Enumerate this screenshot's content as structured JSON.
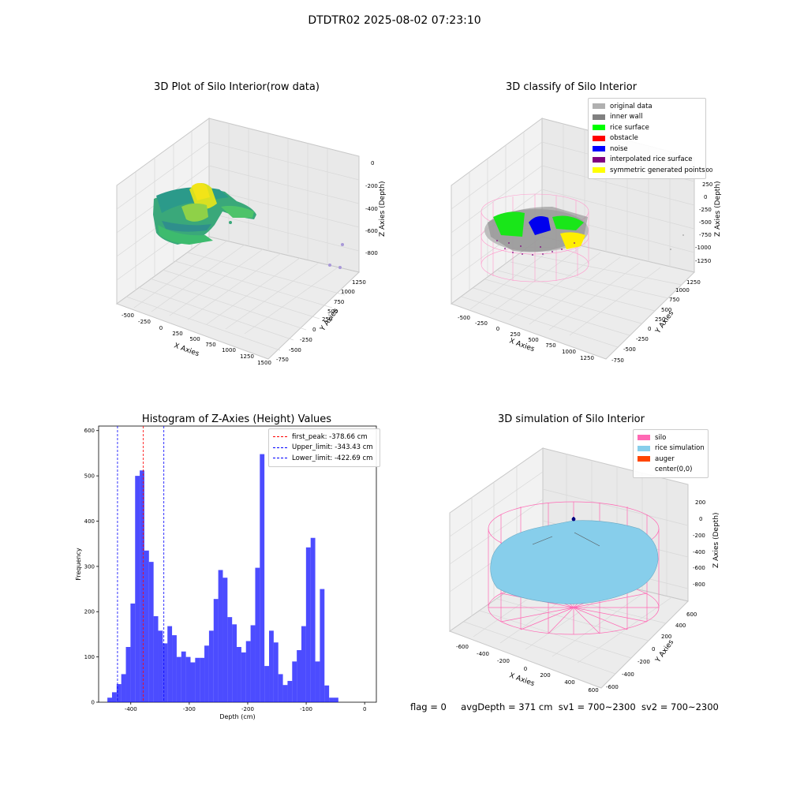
{
  "suptitle": "DTDTR02 2025-08-02 07:23:10",
  "panels": {
    "raw": {
      "title": "3D Plot of Silo Interior(row data)",
      "xlabel": "X Axies",
      "ylabel": "Y Axies",
      "zlabel": "Z Axies (Depth)",
      "xticks": [
        "-500",
        "-250",
        "0",
        "250",
        "500",
        "750",
        "1000",
        "1250",
        "1500"
      ],
      "yticks": [
        "-750",
        "-500",
        "-250",
        "0",
        "250",
        "500",
        "750",
        "1000",
        "1250"
      ],
      "zticks": [
        "0",
        "-200",
        "-400",
        "-600",
        "-800"
      ]
    },
    "classify": {
      "title": "3D classify of Silo Interior",
      "xlabel": "X Axies",
      "ylabel": "Y Axies",
      "zlabel": "Z Axies (Depth)",
      "xticks": [
        "-500",
        "-250",
        "0",
        "250",
        "500",
        "750",
        "1000",
        "1250"
      ],
      "yticks": [
        "-750",
        "-500",
        "-250",
        "0",
        "250",
        "500",
        "750",
        "1000",
        "1250"
      ],
      "zticks": [
        "500",
        "250",
        "0",
        "-250",
        "-500",
        "-750",
        "-1000",
        "-1250"
      ],
      "legend": [
        {
          "label": "original data",
          "color": "#b0b0b0"
        },
        {
          "label": "inner wall",
          "color": "#808080"
        },
        {
          "label": "rice surface",
          "color": "#00ff00"
        },
        {
          "label": "obstacle",
          "color": "#ff0000"
        },
        {
          "label": "noise",
          "color": "#0000ff"
        },
        {
          "label": "interpolated rice surface",
          "color": "#800080"
        },
        {
          "label": "symmetric generated points",
          "color": "#ffff00"
        }
      ]
    },
    "simulation": {
      "title": "3D simulation of Silo Interior",
      "xlabel": "X Axies",
      "ylabel": "Y Axies",
      "zlabel": "Z Axies (Depth)",
      "xticks": [
        "-600",
        "-400",
        "-200",
        "0",
        "200",
        "400",
        "600"
      ],
      "yticks": [
        "-600",
        "-400",
        "-200",
        "0",
        "200",
        "400",
        "600"
      ],
      "zticks": [
        "200",
        "0",
        "-200",
        "-400",
        "-600",
        "-800"
      ],
      "legend": [
        {
          "label": "silo",
          "color": "#ff69b4"
        },
        {
          "label": "rice simulation",
          "color": "#87ceeb"
        },
        {
          "label": "auger",
          "color": "#ff4500"
        },
        {
          "label": "center(0,0)",
          "color": ""
        }
      ]
    }
  },
  "chart_data": {
    "type": "bar",
    "title": "Histogram of Z-Axies (Height) Values",
    "xlabel": "Depth (cm)",
    "ylabel": "Frequency",
    "xlim": [
      -455,
      20
    ],
    "ylim": [
      0,
      610
    ],
    "xticks": [
      -400,
      -300,
      -200,
      -100,
      0
    ],
    "yticks": [
      0,
      100,
      200,
      300,
      400,
      500,
      600
    ],
    "bin_start": -440,
    "bin_width": 7.9,
    "values": [
      10,
      22,
      40,
      62,
      122,
      218,
      500,
      512,
      335,
      310,
      190,
      158,
      130,
      168,
      148,
      100,
      112,
      100,
      88,
      98,
      98,
      125,
      158,
      228,
      292,
      275,
      188,
      172,
      122,
      110,
      135,
      170,
      297,
      548,
      80,
      158,
      132,
      62,
      38,
      47,
      90,
      115,
      168,
      342,
      363,
      90,
      250,
      37,
      10,
      10
    ],
    "bar_color": "#0000ff",
    "bar_opacity": 0.7,
    "vlines": [
      {
        "label": "first_peak: -378.66 cm",
        "x": -378.66,
        "color": "#ff0000"
      },
      {
        "label": "Upper_limit: -343.43 cm",
        "x": -343.43,
        "color": "#0000ff"
      },
      {
        "label": "Lower_limit: -422.69 cm",
        "x": -422.69,
        "color": "#0000ff"
      }
    ],
    "legend_position": "top-right"
  },
  "footer": {
    "flag": "flag = 0",
    "avg": "avgDepth = 371 cm",
    "sv1": "sv1 = 700~2300",
    "sv2": "sv2 = 700~2300"
  }
}
